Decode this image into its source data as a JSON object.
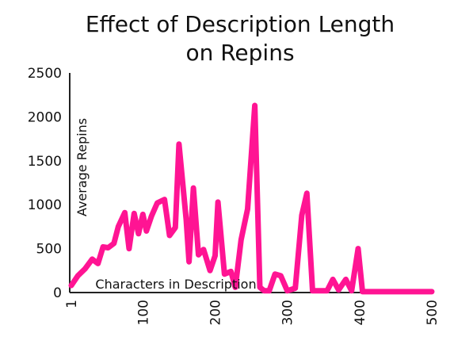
{
  "chart_data": {
    "type": "line",
    "title": [
      "Effect of Description Length",
      "on Repins"
    ],
    "xlabel": "Characters in Description",
    "ylabel": "Average Repins",
    "xlim": [
      1,
      500
    ],
    "ylim": [
      0,
      2500
    ],
    "x_ticks": [
      "1",
      "100",
      "200",
      "300",
      "400",
      "500"
    ],
    "y_ticks": [
      "0",
      "500",
      "1000",
      "1500",
      "2000",
      "2500"
    ],
    "grid": false,
    "colors": {
      "line": "#ff1493"
    },
    "series": [
      {
        "x": [
          1,
          10,
          20,
          30,
          38,
          45,
          52,
          60,
          66,
          75,
          81,
          88,
          94,
          100,
          105,
          112,
          120,
          130,
          137,
          145,
          150,
          160,
          164,
          170,
          177,
          184,
          193,
          200,
          204,
          213,
          222,
          228,
          236,
          245,
          255,
          262,
          268,
          275,
          283,
          291,
          300,
          311,
          320,
          327,
          335,
          347,
          355,
          363,
          371,
          381,
          389,
          398,
          404,
          411,
          418,
          426,
          433,
          441,
          449,
          458,
          464,
          473,
          480,
          488,
          494,
          500
        ],
        "y": [
          80,
          190,
          270,
          380,
          330,
          520,
          510,
          560,
          750,
          910,
          500,
          900,
          670,
          890,
          700,
          870,
          1020,
          1060,
          650,
          740,
          1690,
          830,
          350,
          1190,
          430,
          490,
          250,
          420,
          1030,
          210,
          240,
          60,
          600,
          950,
          2130,
          60,
          20,
          20,
          210,
          190,
          20,
          50,
          880,
          1130,
          20,
          20,
          20,
          150,
          30,
          150,
          20,
          500,
          10,
          10,
          10,
          10,
          10,
          10,
          10,
          10,
          10,
          10,
          10,
          10,
          10,
          10
        ]
      }
    ]
  }
}
